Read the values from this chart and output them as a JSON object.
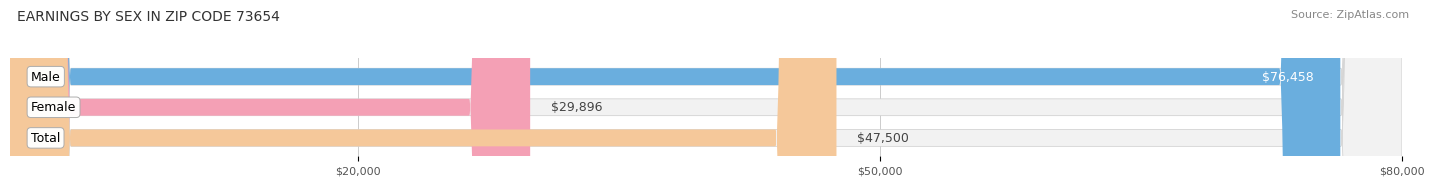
{
  "title": "EARNINGS BY SEX IN ZIP CODE 73654",
  "source": "Source: ZipAtlas.com",
  "categories": [
    "Male",
    "Female",
    "Total"
  ],
  "values": [
    76458,
    29896,
    47500
  ],
  "bar_colors": [
    "#6aaede",
    "#f4a0b5",
    "#f5c89a"
  ],
  "label_colors": [
    "white",
    "black",
    "black"
  ],
  "value_labels": [
    "$76,458",
    "$29,896",
    "$47,500"
  ],
  "bar_bg_color": "#f2f2f2",
  "xlim": [
    0,
    80000
  ],
  "xticks": [
    20000,
    50000,
    80000
  ],
  "xtick_labels": [
    "$20,000",
    "$50,000",
    "$80,000"
  ],
  "title_fontsize": 10,
  "source_fontsize": 8,
  "bar_label_fontsize": 9,
  "category_fontsize": 9,
  "tick_fontsize": 8,
  "background_color": "#ffffff",
  "bar_height": 0.55
}
